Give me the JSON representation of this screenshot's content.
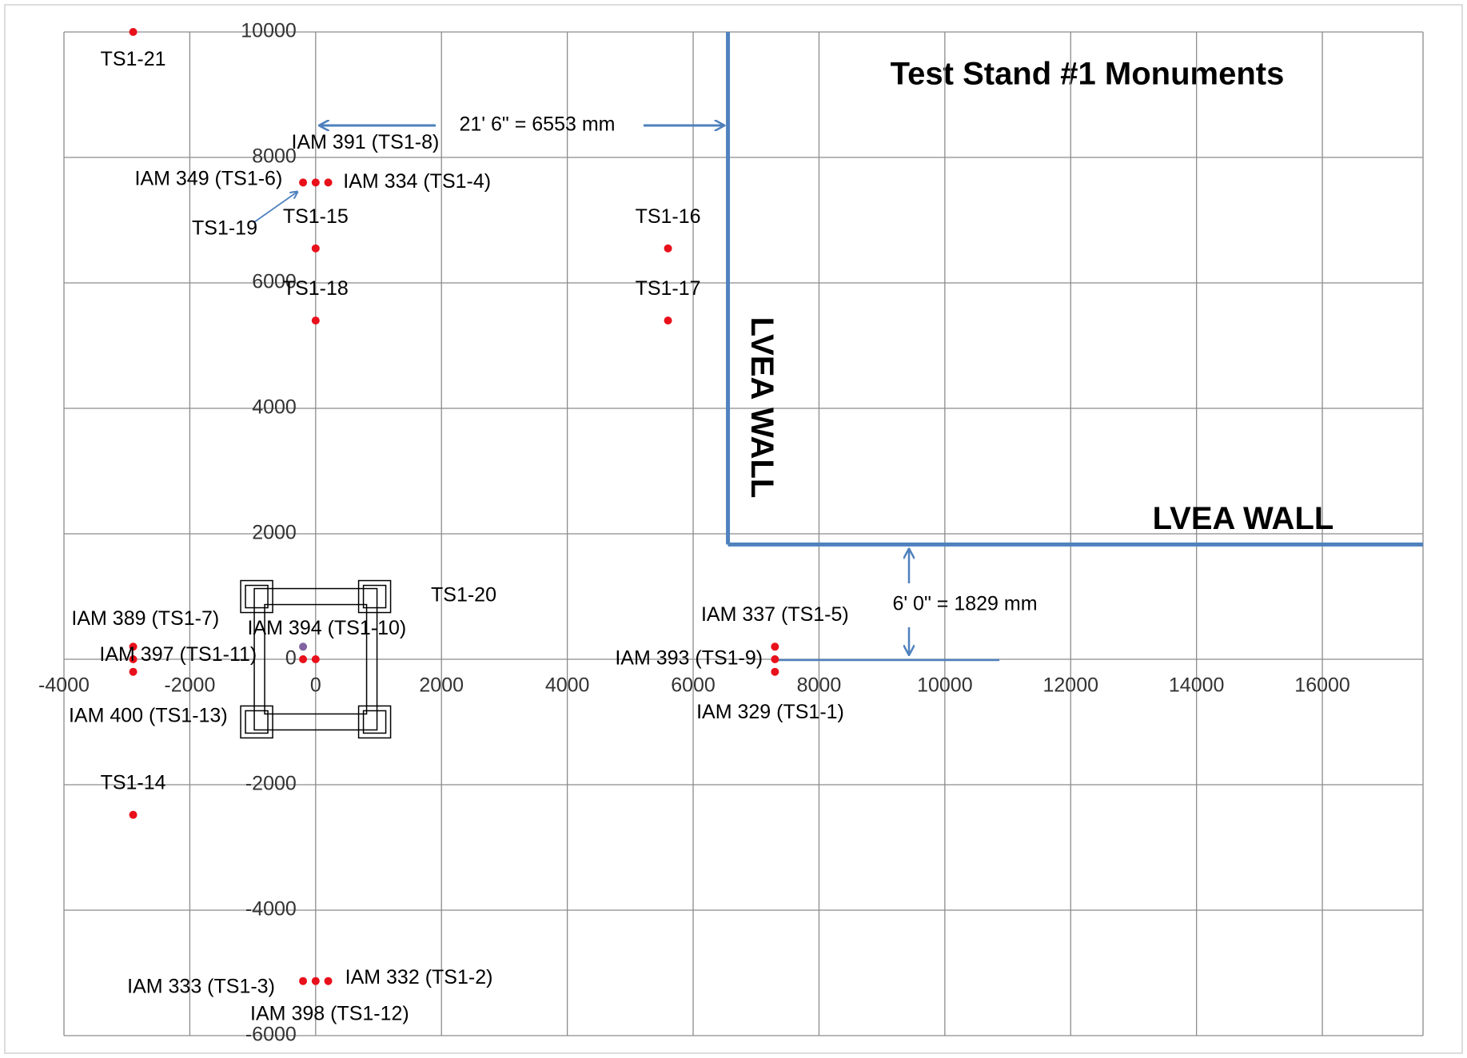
{
  "chart_data": {
    "type": "scatter",
    "title": "Test Stand #1 Monuments",
    "xlim": [
      -4000,
      17600
    ],
    "ylim": [
      -6000,
      10000
    ],
    "xticks": [
      -4000,
      -2000,
      0,
      2000,
      4000,
      6000,
      8000,
      10000,
      12000,
      14000,
      16000
    ],
    "yticks": [
      -6000,
      -4000,
      -2000,
      0,
      2000,
      4000,
      6000,
      8000,
      10000
    ],
    "grid": true,
    "x": [
      -2900,
      0,
      -200,
      200,
      0,
      0,
      5600,
      5600,
      -2900,
      -2900,
      -2900,
      -200,
      0,
      -200,
      7300,
      7300,
      7300,
      -2900,
      -200,
      0,
      200
    ],
    "values": [
      10000,
      7600,
      7600,
      7600,
      6550,
      5400,
      6550,
      5400,
      200,
      0,
      -200,
      0,
      0,
      200,
      200,
      0,
      -200,
      -2480,
      -5130,
      -5130,
      -5130
    ],
    "point_labels": [
      "TS1-21",
      "IAM 391 (TS1-8)",
      "IAM 349 (TS1-6)",
      "IAM 334 (TS1-4)",
      "TS1-15",
      "TS1-18",
      "TS1-16",
      "TS1-17",
      "IAM 389 (TS1-7)",
      "IAM 397 (TS1-11)",
      "IAM 400 (TS1-13)",
      null,
      "IAM 394 (TS1-10)",
      null,
      "IAM 337 (TS1-5)",
      "IAM 393 (TS1-9)",
      "IAM 329 (TS1-1)",
      "TS1-14",
      "IAM 333 (TS1-3)",
      "IAM 398 (TS1-12)",
      "IAM 332 (TS1-2)"
    ],
    "colors": [
      "#e8101a",
      "#e8101a",
      "#e8101a",
      "#e8101a",
      "#e8101a",
      "#e8101a",
      "#e8101a",
      "#e8101a",
      "#e8101a",
      "#e8101a",
      "#e8101a",
      "#e8101a",
      "#e8101a",
      "#8064a2",
      "#e8101a",
      "#e8101a",
      "#e8101a",
      "#e8101a",
      "#e8101a",
      "#e8101a",
      "#e8101a"
    ],
    "annotations": [
      "TS1-19",
      "TS1-20"
    ],
    "wall_x": 6553,
    "wall_y": 1829,
    "wall_color": "#4f81bd",
    "wall_labels": [
      "LVEA WALL",
      "LVEA WALL"
    ],
    "dimension_labels": [
      "21' 6\" = 6553 mm",
      "6' 0\" = 1829 mm"
    ]
  }
}
